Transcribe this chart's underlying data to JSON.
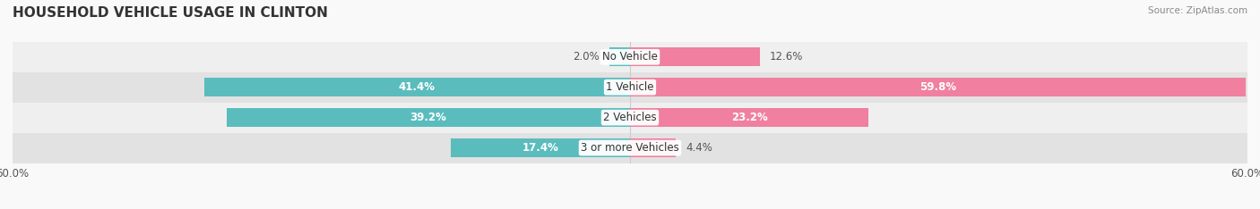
{
  "title": "HOUSEHOLD VEHICLE USAGE IN CLINTON",
  "source": "Source: ZipAtlas.com",
  "categories": [
    "No Vehicle",
    "1 Vehicle",
    "2 Vehicles",
    "3 or more Vehicles"
  ],
  "owner_values": [
    2.0,
    41.4,
    39.2,
    17.4
  ],
  "renter_values": [
    12.6,
    59.8,
    23.2,
    4.4
  ],
  "owner_color": "#5bbcbe",
  "renter_color": "#f07fa0",
  "xlim": 60.0,
  "bar_height": 0.62,
  "row_bg_even": "#efefef",
  "row_bg_odd": "#e2e2e2",
  "title_fontsize": 11,
  "label_fontsize": 8.5,
  "axis_label_fontsize": 8.5,
  "category_fontsize": 8.5,
  "figsize": [
    14.06,
    2.34
  ],
  "dpi": 100
}
